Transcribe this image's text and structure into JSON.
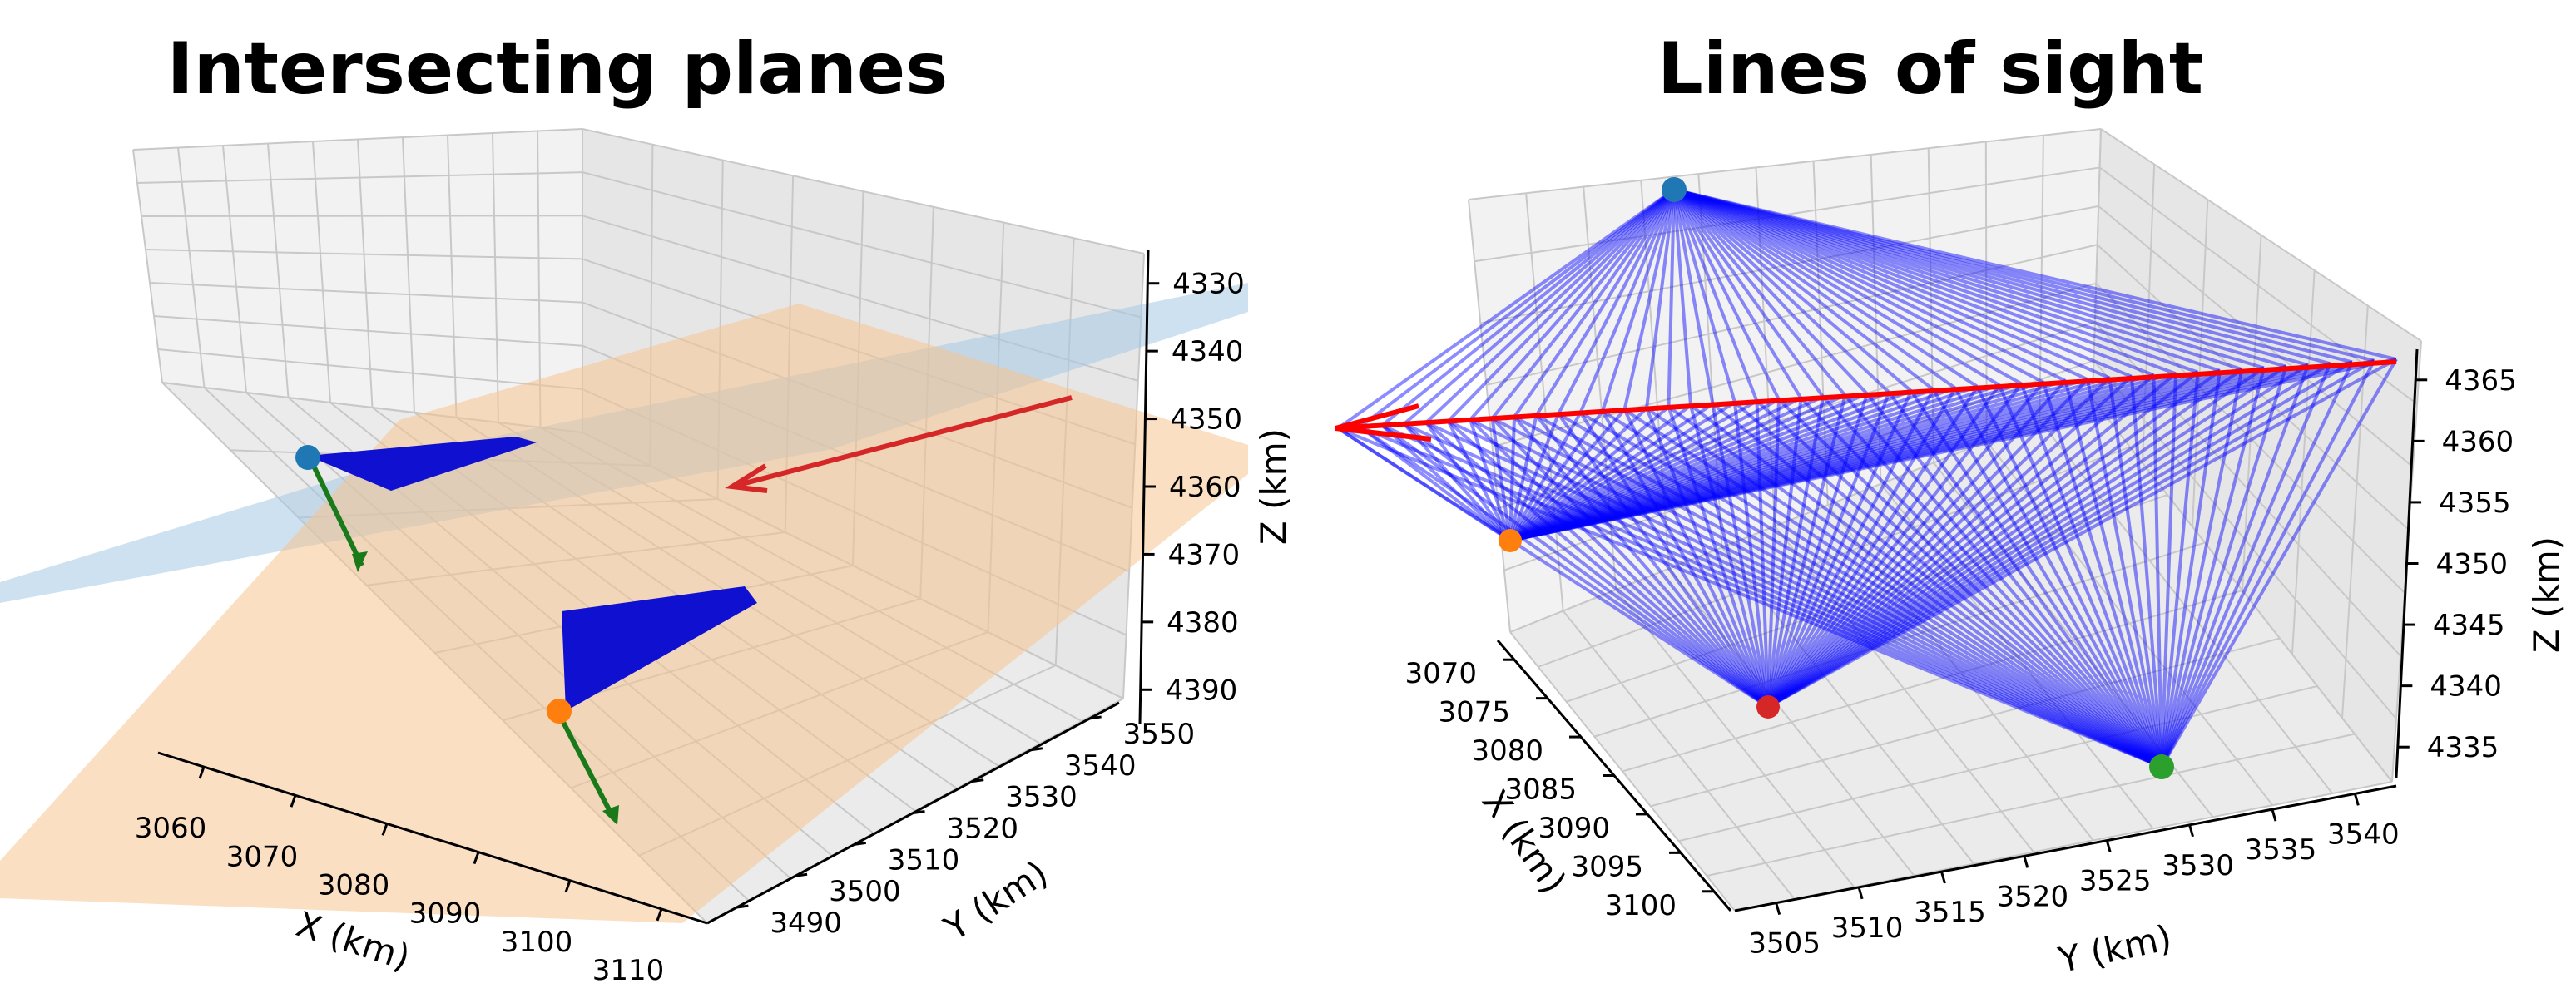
{
  "figure": {
    "panels": [
      {
        "title": "Intersecting planes",
        "xlabel": "X (km)",
        "ylabel": "Y (km)",
        "zlabel": "Z (km)",
        "x_ticks": [
          "3060",
          "3070",
          "3080",
          "3090",
          "3100",
          "3110"
        ],
        "y_ticks": [
          "3490",
          "3500",
          "3510",
          "3520",
          "3530",
          "3540",
          "3550"
        ],
        "z_ticks": [
          "4330",
          "4340",
          "4350",
          "4360",
          "4370",
          "4380",
          "4390"
        ]
      },
      {
        "title": "Lines of sight",
        "xlabel": "X (km)",
        "ylabel": "Y (km)",
        "zlabel": "Z (km)",
        "x_ticks": [
          "3070",
          "3075",
          "3080",
          "3085",
          "3090",
          "3095",
          "3100"
        ],
        "y_ticks": [
          "3505",
          "3510",
          "3515",
          "3520",
          "3525",
          "3530",
          "3535",
          "3540"
        ],
        "z_ticks": [
          "4335",
          "4340",
          "4345",
          "4350",
          "4355",
          "4360",
          "4365"
        ]
      }
    ]
  },
  "chart_data": [
    {
      "type": "scatter",
      "projection": "3d",
      "title": "Intersecting planes",
      "xlabel": "X (km)",
      "ylabel": "Y (km)",
      "zlabel": "Z (km)",
      "xlim": [
        3050,
        3115
      ],
      "ylim": [
        3485,
        3555
      ],
      "zlim": [
        4325,
        4395
      ],
      "x_ticks": [
        3060,
        3070,
        3080,
        3090,
        3100,
        3110
      ],
      "y_ticks": [
        3490,
        3500,
        3510,
        3520,
        3530,
        3540,
        3550
      ],
      "z_ticks": [
        4330,
        4340,
        4350,
        4360,
        4370,
        4380,
        4390
      ],
      "grid": true,
      "stations": [
        {
          "color": "#1f77b4",
          "x": 3062,
          "y": 3530,
          "z": 4385
        },
        {
          "color": "#ff7f0e",
          "x": 3093,
          "y": 3515,
          "z": 4355
        }
      ],
      "planes": [
        {
          "color": "#a6c8e4",
          "opacity": 0.45
        },
        {
          "color": "#f5c491",
          "opacity": 0.55
        }
      ],
      "wedge_color": "#1010d0",
      "normal_color": "#1a7a1a",
      "intersection_arrow_color": "#d62728"
    },
    {
      "type": "line",
      "projection": "3d",
      "title": "Lines of sight",
      "xlabel": "X (km)",
      "ylabel": "Y (km)",
      "zlabel": "Z (km)",
      "xlim": [
        3067,
        3102
      ],
      "ylim": [
        3503,
        3542
      ],
      "zlim": [
        4332,
        4368
      ],
      "x_ticks": [
        3070,
        3075,
        3080,
        3085,
        3090,
        3095,
        3100
      ],
      "y_ticks": [
        3505,
        3510,
        3515,
        3520,
        3525,
        3530,
        3535,
        3540
      ],
      "z_ticks": [
        4335,
        4340,
        4345,
        4350,
        4355,
        4360,
        4365
      ],
      "grid": true,
      "stations": [
        {
          "color": "#1f77b4",
          "x": 3068,
          "y": 3532,
          "z": 4365
        },
        {
          "color": "#ff7f0e",
          "x": 3072,
          "y": 3504,
          "z": 4355
        },
        {
          "color": "#d62728",
          "x": 3098,
          "y": 3508,
          "z": 4340
        },
        {
          "color": "#2ca02c",
          "x": 3090,
          "y": 3530,
          "z": 4334
        }
      ],
      "sight_line_color": "#0000ff",
      "track_arrow_color": "#ff0000"
    }
  ]
}
